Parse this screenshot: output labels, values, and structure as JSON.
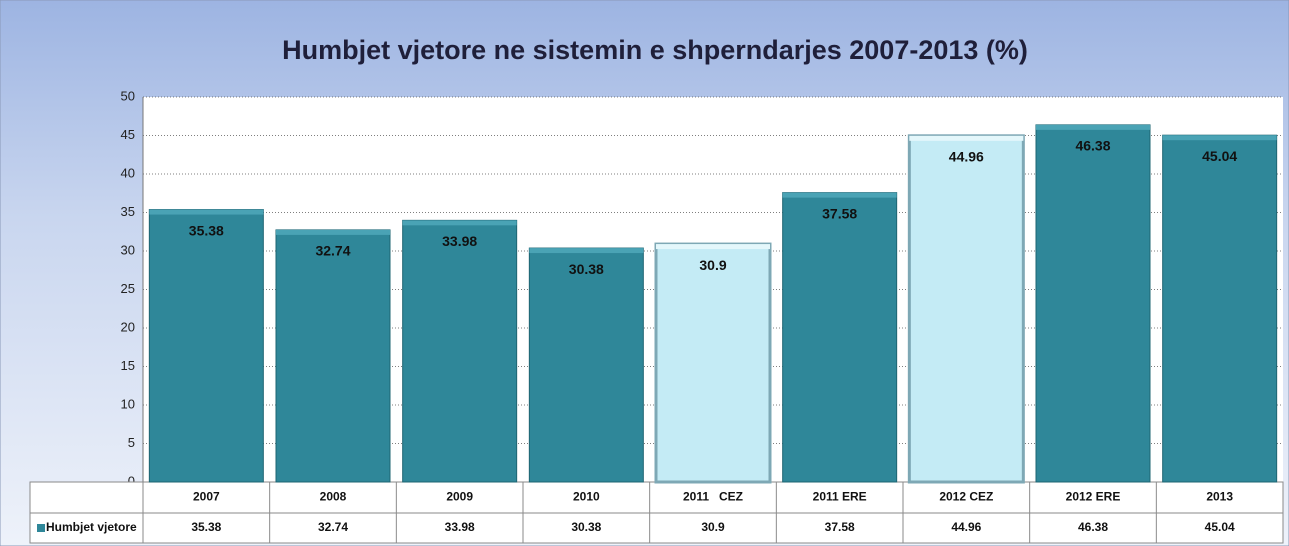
{
  "chart_data": {
    "type": "bar",
    "title": "Humbjet vjetore  ne sistemin e  shperndarjes 2007-2013  (%)",
    "categories": [
      "2007",
      "2008",
      "2009",
      "2010",
      "2011   CEZ",
      "2011 ERE",
      "2012 CEZ",
      "2012 ERE",
      "2013"
    ],
    "series": [
      {
        "name": "Humbjet vjetore",
        "color": "#2f8799",
        "colors": [
          "#2f8799",
          "#2f8799",
          "#2f8799",
          "#2f8799",
          "#c4ebf5",
          "#2f8799",
          "#c4ebf5",
          "#2f8799",
          "#2f8799"
        ],
        "values": [
          35.38,
          32.74,
          33.98,
          30.38,
          30.9,
          37.58,
          44.96,
          46.38,
          45.04
        ]
      }
    ],
    "ylim": [
      0,
      50
    ],
    "yticks": [
      0,
      5,
      10,
      15,
      20,
      25,
      30,
      35,
      40,
      45,
      50
    ],
    "grid": true,
    "data_table": true
  }
}
